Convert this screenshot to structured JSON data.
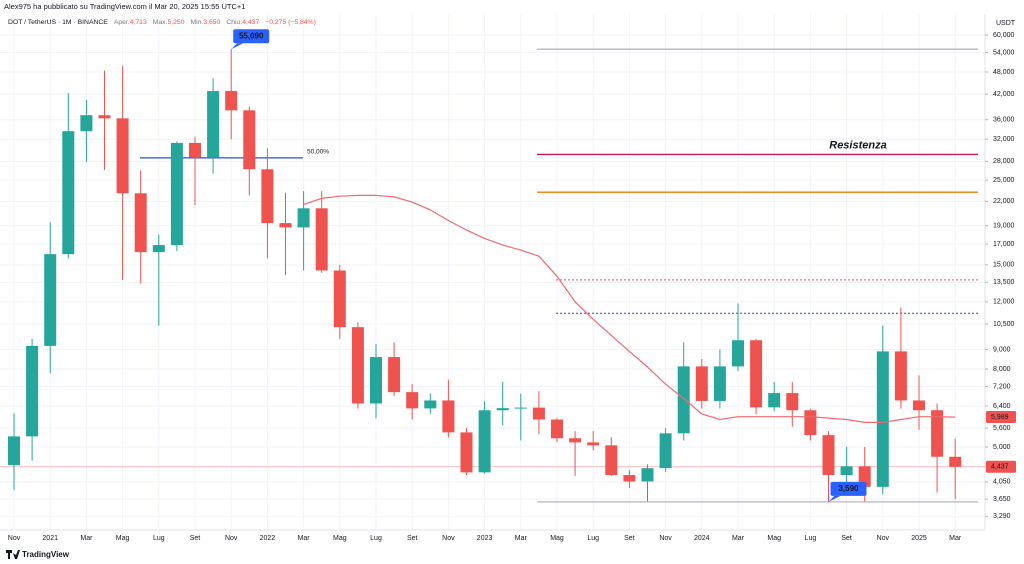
{
  "header": {
    "author_line": "Alex975 ha pubblicato su TradingView.com il Mar 20, 2025 15:55 UTC+1",
    "brand": "TradingView"
  },
  "chart_data": {
    "type": "candlestick",
    "title": "DOT / TetherUS · 1M · BINANCE",
    "info": [
      {
        "key": "Aper.",
        "value": "4,713"
      },
      {
        "key": "Max.",
        "value": "5,250"
      },
      {
        "key": "Min.",
        "value": "3,650"
      },
      {
        "key": "Chiu.",
        "value": "4,437"
      }
    ],
    "change": "−0,275 (−5,84%)",
    "y_unit": "USDT",
    "log_scale": true,
    "grid": true,
    "colors": {
      "up": "#26a69a",
      "down": "#ef5350"
    },
    "categories": [
      "Nov",
      null,
      "2021",
      null,
      "Mar",
      null,
      "Mag",
      null,
      "Lug",
      null,
      "Set",
      null,
      "Nov",
      null,
      "2022",
      null,
      "Mar",
      null,
      "Mag",
      null,
      "Lug",
      null,
      "Set",
      null,
      "Nov",
      null,
      "2023",
      null,
      "Mar",
      null,
      "Mag",
      null,
      "Lug",
      null,
      "Set",
      null,
      "Nov",
      null,
      "2024",
      null,
      "Mar",
      null,
      "Mag",
      null,
      "Lug",
      null,
      "Set",
      null,
      "Nov",
      null,
      "2025",
      null,
      "Mar"
    ],
    "open": [
      4.48,
      5.33,
      9.2,
      16.0,
      33.6,
      37.0,
      36.3,
      23.1,
      16.2,
      16.9,
      31.3,
      28.7,
      42.8,
      38.1,
      26.7,
      19.3,
      18.8,
      21.1,
      14.5,
      10.3,
      6.5,
      8.6,
      6.96,
      6.31,
      6.62,
      5.46,
      4.29,
      6.24,
      6.32,
      6.34,
      5.9,
      5.27,
      5.14,
      5.05,
      4.22,
      4.06,
      4.4,
      5.43,
      8.13,
      6.6,
      8.13,
      9.52,
      6.35,
      6.92,
      6.24,
      5.37,
      4.22,
      4.45,
      3.93,
      8.9,
      6.62,
      6.24,
      4.713
    ],
    "high": [
      6.13,
      9.6,
      19.4,
      42.3,
      40.6,
      48.4,
      49.8,
      26.5,
      18.0,
      31.6,
      32.5,
      46.2,
      55.09,
      39.0,
      30.3,
      23.2,
      23.4,
      23.4,
      15.0,
      10.6,
      9.3,
      9.4,
      7.3,
      6.9,
      7.5,
      5.6,
      6.6,
      7.4,
      6.9,
      7.0,
      5.95,
      5.5,
      5.5,
      5.3,
      4.35,
      4.5,
      5.6,
      9.4,
      8.5,
      9.0,
      11.88,
      9.6,
      7.4,
      7.4,
      6.3,
      5.5,
      5.0,
      5.0,
      10.4,
      11.6,
      7.7,
      6.5,
      5.25
    ],
    "low": [
      3.85,
      4.6,
      7.8,
      15.6,
      27.9,
      26.6,
      13.7,
      13.4,
      10.4,
      16.3,
      21.5,
      26.0,
      32.0,
      22.8,
      15.6,
      14.1,
      14.5,
      14.3,
      9.6,
      6.3,
      5.95,
      6.8,
      5.9,
      6.1,
      5.3,
      4.22,
      4.25,
      5.7,
      5.2,
      5.4,
      5.15,
      4.2,
      4.9,
      4.2,
      3.9,
      3.6,
      4.3,
      5.2,
      6.3,
      6.3,
      7.9,
      6.1,
      6.2,
      5.65,
      5.2,
      3.59,
      4.0,
      3.6,
      3.75,
      6.3,
      5.55,
      3.8,
      3.65
    ],
    "close": [
      5.33,
      9.2,
      16.0,
      33.6,
      37.0,
      36.3,
      23.1,
      16.2,
      16.9,
      31.3,
      28.7,
      42.8,
      38.1,
      26.7,
      19.3,
      18.8,
      21.1,
      14.5,
      10.3,
      6.5,
      8.6,
      6.96,
      6.31,
      6.62,
      5.46,
      4.29,
      6.24,
      6.32,
      6.34,
      5.9,
      5.27,
      5.14,
      5.05,
      4.22,
      4.06,
      4.4,
      5.43,
      8.13,
      6.6,
      8.13,
      9.52,
      6.35,
      6.92,
      6.24,
      5.37,
      4.22,
      4.45,
      3.93,
      8.9,
      6.62,
      6.24,
      4.713,
      4.437
    ],
    "overlay_series": [
      {
        "color": "#f06a70",
        "values": [
          null,
          null,
          null,
          null,
          null,
          null,
          null,
          null,
          null,
          null,
          null,
          null,
          null,
          null,
          null,
          null,
          21.6,
          22.4,
          22.7,
          22.8,
          22.8,
          22.6,
          21.9,
          20.9,
          19.6,
          18.5,
          17.6,
          16.9,
          16.4,
          15.8,
          14.0,
          12.0,
          10.8,
          9.8,
          8.9,
          8.1,
          7.3,
          6.7,
          6.1,
          5.9,
          6.0,
          6.0,
          6.0,
          6.0,
          6.0,
          5.95,
          5.9,
          5.8,
          5.8,
          5.9,
          6.0,
          6.0,
          5.989
        ]
      }
    ],
    "ylim": [
      3.03,
      66.5
    ],
    "yticks": [
      {
        "value": 60,
        "label": "60,000"
      },
      {
        "value": 54,
        "label": "54,000"
      },
      {
        "value": 48,
        "label": "48,000"
      },
      {
        "value": 42,
        "label": "42,000"
      },
      {
        "value": 36,
        "label": "36,000"
      },
      {
        "value": 32,
        "label": "32,000"
      },
      {
        "value": 28,
        "label": "28,000"
      },
      {
        "value": 25,
        "label": "25,000"
      },
      {
        "value": 22,
        "label": "22,000"
      },
      {
        "value": 19,
        "label": "19,000"
      },
      {
        "value": 17,
        "label": "17,000"
      },
      {
        "value": 15,
        "label": "15,000"
      },
      {
        "value": 13.5,
        "label": "13,500"
      },
      {
        "value": 12,
        "label": "12,000"
      },
      {
        "value": 10.5,
        "label": "10,500"
      },
      {
        "value": 9,
        "label": "9,000"
      },
      {
        "value": 8,
        "label": "8,000"
      },
      {
        "value": 7.2,
        "label": "7,200"
      },
      {
        "value": 6.4,
        "label": "6,400"
      },
      {
        "value": 5.6,
        "label": "5,600"
      },
      {
        "value": 5,
        "label": "5,000"
      },
      {
        "value": 4.05,
        "label": "4,050"
      },
      {
        "value": 3.65,
        "label": "3,650"
      },
      {
        "value": 3.29,
        "label": "3,290"
      }
    ],
    "levels": [
      {
        "value": 55.09,
        "color": "#b2b5be"
      },
      {
        "value": 29.2,
        "color": "#c2185b",
        "label": "Resistenza"
      },
      {
        "value": 23.25,
        "color": "#f57c00"
      },
      {
        "value": 13.7,
        "color": "#ef5350",
        "dashed": true
      },
      {
        "value": 11.2,
        "color": "#2a4fb0",
        "dashed": true
      },
      {
        "value": 3.59,
        "color": "#b2b5be"
      },
      {
        "value": 28.6,
        "color": "#2a4fd0",
        "label": "50,00%"
      }
    ],
    "callouts": [
      {
        "value": 55.09,
        "label": "55,090",
        "color": "#2962ff"
      },
      {
        "value": 3.59,
        "label": "3,590",
        "color": "#2962ff"
      }
    ],
    "price_labels": [
      {
        "value": 5.989,
        "label": "5,989",
        "color": "#ef5350"
      },
      {
        "value": 4.437,
        "label": "4,437",
        "color": "#ef5350"
      }
    ]
  }
}
